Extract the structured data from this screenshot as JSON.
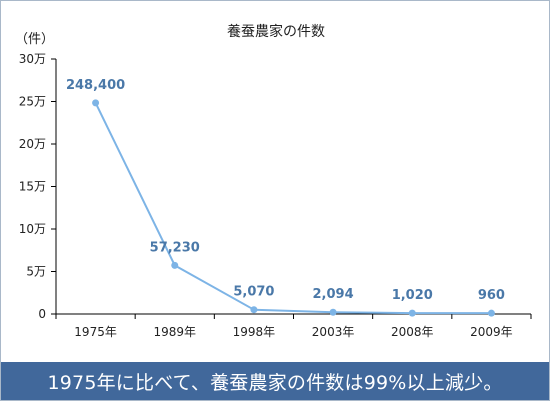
{
  "chart_data": {
    "type": "line",
    "title": "養蚕農家の件数",
    "ylabel": "（件）",
    "categories": [
      "1975年",
      "1989年",
      "1998年",
      "2003年",
      "2008年",
      "2009年"
    ],
    "series": [
      {
        "values": [
          248400,
          57230,
          5070,
          2094,
          1020,
          960
        ],
        "data_labels": [
          "248,400",
          "57,230",
          "5,070",
          "2,094",
          "1,020",
          "960"
        ]
      }
    ],
    "yticks": [
      {
        "value": 0,
        "label": "0"
      },
      {
        "value": 50000,
        "label": "5万"
      },
      {
        "value": 100000,
        "label": "10万"
      },
      {
        "value": 150000,
        "label": "15万"
      },
      {
        "value": 200000,
        "label": "20万"
      },
      {
        "value": 250000,
        "label": "25万"
      },
      {
        "value": 300000,
        "label": "30万"
      }
    ],
    "ylim": [
      0,
      300000
    ],
    "grid": false,
    "colors": {
      "line": "#7db4e6",
      "marker": "#7db4e6",
      "data_label": "#4a78a8",
      "axis": "#000000"
    }
  },
  "caption": "1975年に比べて、養蚕農家の件数は99%以上減少。",
  "colors": {
    "caption_bg": "#41689b",
    "caption_text": "#ffffff"
  }
}
